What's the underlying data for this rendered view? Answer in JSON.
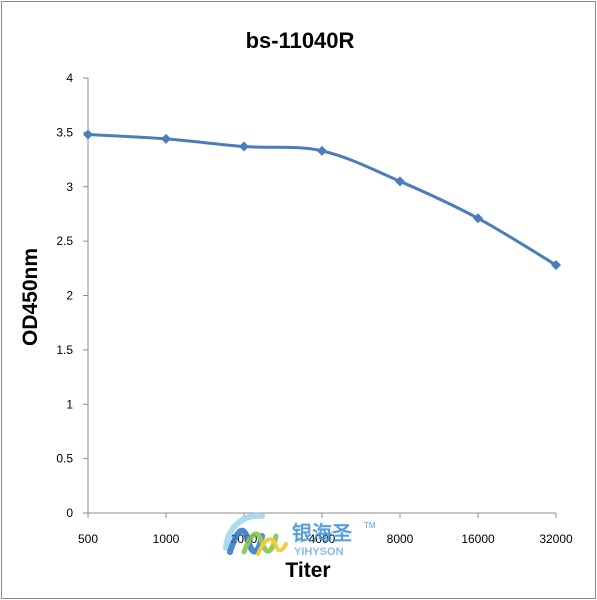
{
  "chart_data": {
    "type": "line",
    "title": "bs-11040R",
    "xlabel": "Titer",
    "ylabel": "OD450nm",
    "categories": [
      "500",
      "1000",
      "2000",
      "4000",
      "8000",
      "16000",
      "32000"
    ],
    "series": [
      {
        "values": [
          3.48,
          3.44,
          3.37,
          3.33,
          3.05,
          2.71,
          2.28
        ]
      }
    ],
    "ylim": [
      0,
      4
    ],
    "yticks": [
      "0",
      "0.5",
      "1",
      "1.5",
      "2",
      "2.5",
      "3",
      "3.5",
      "4"
    ],
    "grid": false,
    "legend": "none",
    "colors": {
      "series": "#4a7ebb",
      "axis": "#8c8c8c",
      "text": "#000000"
    }
  },
  "watermark": {
    "cn": "银海圣",
    "en": "YIHYSON",
    "tm": "TM"
  }
}
